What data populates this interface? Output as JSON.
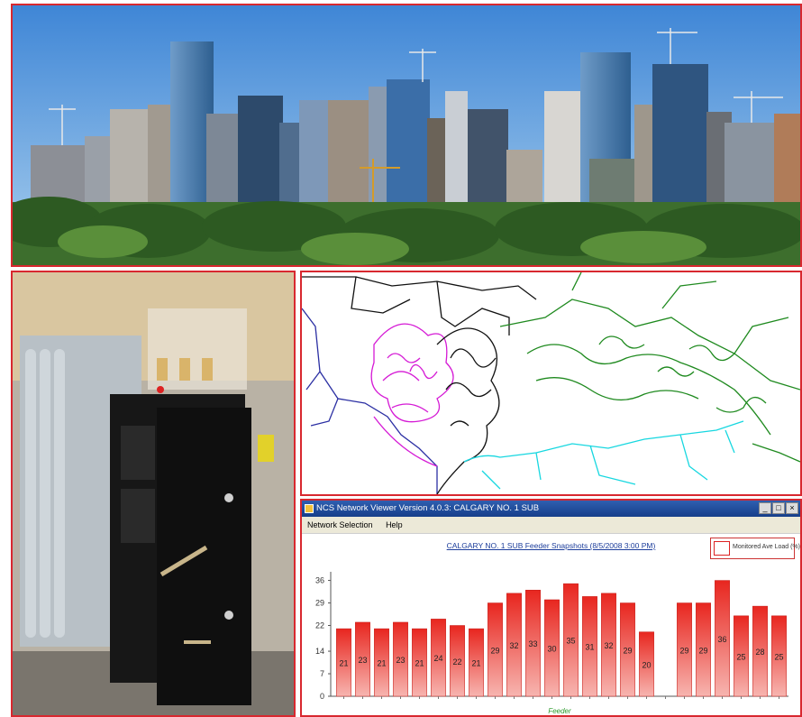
{
  "window": {
    "title": "NCS Network Viewer Version 4.0.3: CALGARY NO. 1 SUB",
    "buttons": [
      "_",
      "□",
      "×"
    ]
  },
  "menu": {
    "items": [
      "Network Selection",
      "Help"
    ]
  },
  "legend": {
    "label": "Monitored Ave Load (%)"
  },
  "chart_data": {
    "type": "bar",
    "title": "CALGARY NO. 1 SUB Feeder Snapshots (8/5/2008 3:00 PM)",
    "xlabel": "Feeder",
    "ylabel": "",
    "y_ticks": [
      0,
      7,
      14,
      22,
      29,
      36
    ],
    "ylim": [
      0,
      37
    ],
    "values": [
      21,
      23,
      21,
      23,
      21,
      24,
      22,
      21,
      29,
      32,
      33,
      30,
      35,
      31,
      32,
      29,
      20,
      null,
      29,
      29,
      36,
      25,
      28,
      25
    ],
    "grid": false,
    "bar_color": "#e8261f"
  }
}
